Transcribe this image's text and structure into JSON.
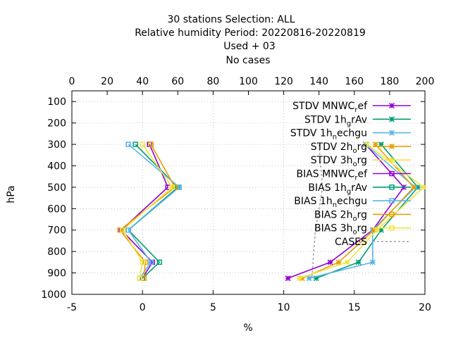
{
  "title_lines": [
    "30 stations Selection: ALL",
    "Relative humidity  Period: 20220816-20220819",
    "Used   + 03",
    "No cases"
  ],
  "chart_data": {
    "type": "line",
    "xlabel": "%",
    "ylabel": "hPa",
    "xlim": [
      -5,
      20
    ],
    "x_ticks": [
      -5,
      0,
      5,
      10,
      15,
      20
    ],
    "ylim": [
      1000,
      50
    ],
    "y_ticks": [
      100,
      200,
      300,
      400,
      500,
      600,
      700,
      800,
      900,
      1000
    ],
    "x2lim": [
      0,
      200
    ],
    "x2_ticks": [
      0,
      20,
      40,
      60,
      80,
      100,
      120,
      140,
      160,
      180,
      200
    ],
    "grid": true,
    "legend_position": "top-right",
    "series": [
      {
        "name": "STDV MNWC_ref",
        "label_main": "STDV MNWC",
        "label_sub": "r",
        "label_tail": "ef",
        "kind": "stdv",
        "color": "#9400d3",
        "marker": "x",
        "points": [
          [
            15.8,
            300
          ],
          [
            18.5,
            500
          ],
          [
            16.3,
            700
          ],
          [
            13.3,
            850
          ],
          [
            10.3,
            925
          ]
        ]
      },
      {
        "name": "STDV 1h_grAv",
        "label_main": "STDV 1h",
        "label_sub": "g",
        "label_tail": "rAv",
        "kind": "stdv",
        "color": "#009e73",
        "marker": "x",
        "points": [
          [
            16.9,
            300
          ],
          [
            19.5,
            500
          ],
          [
            16.9,
            700
          ],
          [
            15.3,
            850
          ],
          [
            12.3,
            925
          ]
        ]
      },
      {
        "name": "STDV 1h_nechgu",
        "label_main": "STDV 1h",
        "label_sub": "n",
        "label_tail": "echgu",
        "kind": "stdv",
        "color": "#56b4e9",
        "marker": "x",
        "points": [
          [
            15.8,
            300
          ],
          [
            19.3,
            500
          ],
          [
            16.3,
            700
          ],
          [
            16.3,
            850
          ],
          [
            11.8,
            925
          ]
        ]
      },
      {
        "name": "STDV 2h_org",
        "label_main": "STDV 2h",
        "label_sub": "o",
        "label_tail": "rg",
        "kind": "stdv",
        "color": "#e69f00",
        "marker": "x",
        "points": [
          [
            16.5,
            300
          ],
          [
            19.2,
            500
          ],
          [
            16.4,
            700
          ],
          [
            13.9,
            850
          ],
          [
            11.3,
            925
          ]
        ]
      },
      {
        "name": "STDV 3h_org",
        "label_main": "STDV 3h",
        "label_sub": "o",
        "label_tail": "rg",
        "kind": "stdv",
        "color": "#f0e442",
        "marker": "x",
        "points": [
          [
            15.9,
            300
          ],
          [
            19.9,
            500
          ],
          [
            16.6,
            700
          ],
          [
            14.5,
            850
          ],
          [
            11.1,
            925
          ]
        ]
      },
      {
        "name": "BIAS MNWC_ref",
        "label_main": "BIAS MNWC",
        "label_sub": "r",
        "label_tail": "ef",
        "kind": "bias",
        "color": "#9400d3",
        "marker": "square",
        "points": [
          [
            0.5,
            300
          ],
          [
            1.8,
            500
          ],
          [
            -1.5,
            700
          ],
          [
            0.7,
            850
          ],
          [
            0.0,
            925
          ]
        ]
      },
      {
        "name": "BIAS 1h_grAv",
        "label_main": "BIAS 1h",
        "label_sub": "g",
        "label_tail": "rAv",
        "kind": "bias",
        "color": "#009e73",
        "marker": "square",
        "points": [
          [
            -0.5,
            300
          ],
          [
            2.5,
            500
          ],
          [
            -1.0,
            700
          ],
          [
            1.2,
            850
          ],
          [
            0.0,
            925
          ]
        ]
      },
      {
        "name": "BIAS 1h_nechgu",
        "label_main": "BIAS 1h",
        "label_sub": "n",
        "label_tail": "echgu",
        "kind": "bias",
        "color": "#56b4e9",
        "marker": "square",
        "points": [
          [
            -1.0,
            300
          ],
          [
            2.6,
            500
          ],
          [
            -1.0,
            700
          ],
          [
            0.6,
            850
          ],
          [
            -0.2,
            925
          ]
        ]
      },
      {
        "name": "BIAS 2h_org",
        "label_main": "BIAS 2h",
        "label_sub": "o",
        "label_tail": "rg",
        "kind": "bias",
        "color": "#e69f00",
        "marker": "square",
        "points": [
          [
            0.6,
            300
          ],
          [
            2.3,
            500
          ],
          [
            -1.6,
            700
          ],
          [
            0.2,
            850
          ],
          [
            0.1,
            925
          ]
        ]
      },
      {
        "name": "BIAS 3h_org",
        "label_main": "BIAS 3h",
        "label_sub": "o",
        "label_tail": "rg",
        "kind": "bias",
        "color": "#f0e442",
        "marker": "square",
        "points": [
          [
            0.0,
            300
          ],
          [
            2.1,
            500
          ],
          [
            -1.4,
            700
          ],
          [
            0.0,
            850
          ],
          [
            -0.2,
            925
          ]
        ]
      },
      {
        "name": "CASES",
        "label_main": "CASES",
        "label_sub": "",
        "label_tail": "",
        "kind": "cases",
        "color": "#a0a0a0",
        "marker": "none",
        "axis": "top",
        "points": [
          [
            140,
            300
          ],
          [
            142,
            500
          ],
          [
            140,
            600
          ],
          [
            138,
            700
          ],
          [
            137,
            800
          ],
          [
            136,
            925
          ]
        ]
      }
    ]
  }
}
